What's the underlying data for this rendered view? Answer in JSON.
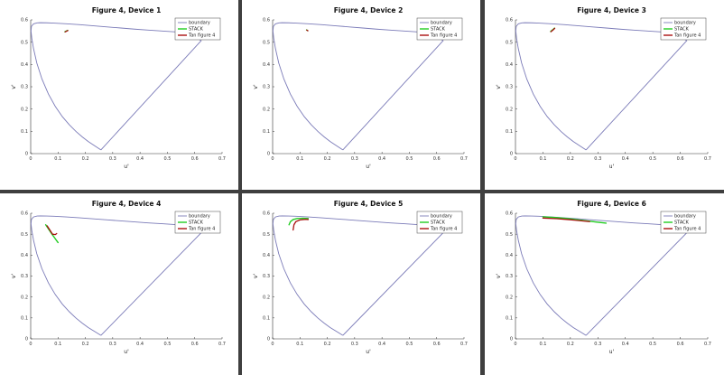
{
  "chart_data": [
    {
      "type": "line",
      "title": "Figure 4, Device 1",
      "xlabel": "u'",
      "ylabel": "v'",
      "xlim": [
        0,
        0.7
      ],
      "ylim": [
        0,
        0.6
      ],
      "xticks": [
        "0",
        "0.1",
        "0.2",
        "0.3",
        "0.4",
        "0.5",
        "0.6",
        "0.7"
      ],
      "yticks": [
        "0",
        "0.1",
        "0.2",
        "0.3",
        "0.4",
        "0.5",
        "0.6"
      ],
      "legend": [
        "boundary",
        "STACK",
        "Tan figure 4"
      ],
      "series": [
        {
          "name": "STACK",
          "u": [
            0.125,
            0.13,
            0.135
          ],
          "v": [
            0.547,
            0.55,
            0.553
          ]
        },
        {
          "name": "Tan figure 4",
          "u": [
            0.126,
            0.131,
            0.136
          ],
          "v": [
            0.546,
            0.549,
            0.552
          ]
        }
      ]
    },
    {
      "type": "line",
      "title": "Figure 4, Device 2",
      "xlabel": "u'",
      "ylabel": "v'",
      "xlim": [
        0,
        0.7
      ],
      "ylim": [
        0,
        0.6
      ],
      "xticks": [
        "0",
        "0.1",
        "0.2",
        "0.3",
        "0.4",
        "0.5",
        "0.6",
        "0.7"
      ],
      "yticks": [
        "0",
        "0.1",
        "0.2",
        "0.3",
        "0.4",
        "0.5",
        "0.6"
      ],
      "legend": [
        "boundary",
        "STACK",
        "Tan figure 4"
      ],
      "series": [
        {
          "name": "STACK",
          "u": [
            0.124,
            0.128
          ],
          "v": [
            0.555,
            0.552
          ]
        },
        {
          "name": "Tan figure 4",
          "u": [
            0.125,
            0.129
          ],
          "v": [
            0.554,
            0.551
          ]
        }
      ]
    },
    {
      "type": "line",
      "title": "Figure 4, Device 3",
      "xlabel": "u'",
      "ylabel": "v'",
      "xlim": [
        0,
        0.7
      ],
      "ylim": [
        0,
        0.6
      ],
      "xticks": [
        "0",
        "0.1",
        "0.2",
        "0.3",
        "0.4",
        "0.5",
        "0.6",
        "0.7"
      ],
      "yticks": [
        "0",
        "0.1",
        "0.2",
        "0.3",
        "0.4",
        "0.5",
        "0.6"
      ],
      "legend": [
        "boundary",
        "STACK",
        "Tan figure 4"
      ],
      "series": [
        {
          "name": "STACK",
          "u": [
            0.128,
            0.135,
            0.142
          ],
          "v": [
            0.548,
            0.555,
            0.563
          ]
        },
        {
          "name": "Tan figure 4",
          "u": [
            0.129,
            0.136,
            0.143
          ],
          "v": [
            0.547,
            0.554,
            0.562
          ]
        }
      ]
    },
    {
      "type": "line",
      "title": "Figure 4, Device 4",
      "xlabel": "u'",
      "ylabel": "v'",
      "xlim": [
        0,
        0.7
      ],
      "ylim": [
        0,
        0.6
      ],
      "xticks": [
        "0",
        "0.1",
        "0.2",
        "0.3",
        "0.4",
        "0.5",
        "0.6",
        "0.7"
      ],
      "yticks": [
        "0",
        "0.1",
        "0.2",
        "0.3",
        "0.4",
        "0.5",
        "0.6"
      ],
      "legend": [
        "boundary",
        "STACK",
        "Tan figure 4"
      ],
      "series": [
        {
          "name": "STACK",
          "u": [
            0.055,
            0.065,
            0.078,
            0.09,
            0.1
          ],
          "v": [
            0.545,
            0.525,
            0.5,
            0.478,
            0.46
          ]
        },
        {
          "name": "Tan figure 4",
          "u": [
            0.06,
            0.07,
            0.08,
            0.09,
            0.095
          ],
          "v": [
            0.54,
            0.52,
            0.5,
            0.498,
            0.503
          ]
        }
      ]
    },
    {
      "type": "line",
      "title": "Figure 4, Device 5",
      "xlabel": "u'",
      "ylabel": "v'",
      "xlim": [
        0,
        0.7
      ],
      "ylim": [
        0,
        0.6
      ],
      "xticks": [
        "0",
        "0.1",
        "0.2",
        "0.3",
        "0.4",
        "0.5",
        "0.6",
        "0.7"
      ],
      "yticks": [
        "0",
        "0.1",
        "0.2",
        "0.3",
        "0.4",
        "0.5",
        "0.6"
      ],
      "legend": [
        "boundary",
        "STACK",
        "Tan figure 4"
      ],
      "series": [
        {
          "name": "STACK",
          "u": [
            0.06,
            0.065,
            0.075,
            0.09,
            0.11,
            0.13
          ],
          "v": [
            0.545,
            0.56,
            0.57,
            0.575,
            0.576,
            0.575
          ]
        },
        {
          "name": "Tan figure 4",
          "u": [
            0.075,
            0.078,
            0.085,
            0.1,
            0.12,
            0.13
          ],
          "v": [
            0.52,
            0.545,
            0.56,
            0.568,
            0.571,
            0.57
          ]
        }
      ]
    },
    {
      "type": "line",
      "title": "Figure 4, Device 6",
      "xlabel": "u'",
      "ylabel": "v'",
      "xlim": [
        0,
        0.7
      ],
      "ylim": [
        0,
        0.6
      ],
      "xticks": [
        "0",
        "0.1",
        "0.2",
        "0.3",
        "0.4",
        "0.5",
        "0.6",
        "0.7"
      ],
      "yticks": [
        "0",
        "0.1",
        "0.2",
        "0.3",
        "0.4",
        "0.5",
        "0.6"
      ],
      "legend": [
        "boundary",
        "STACK",
        "Tan figure 4"
      ],
      "series": [
        {
          "name": "STACK",
          "u": [
            0.1,
            0.15,
            0.2,
            0.25,
            0.3,
            0.33
          ],
          "v": [
            0.583,
            0.579,
            0.573,
            0.565,
            0.557,
            0.553
          ]
        },
        {
          "name": "Tan figure 4",
          "u": [
            0.1,
            0.15,
            0.2,
            0.24,
            0.27
          ],
          "v": [
            0.577,
            0.574,
            0.569,
            0.564,
            0.56
          ]
        }
      ]
    }
  ],
  "boundary": {
    "u": [
      0.2568,
      0.2335,
      0.2105,
      0.1891,
      0.1659,
      0.1412,
      0.1154,
      0.0899,
      0.0648,
      0.0412,
      0.0224,
      0.0103,
      0.0039,
      0.0012,
      0.0027,
      0.0103,
      0.0234,
      0.035,
      0.058,
      0.085,
      0.13,
      0.18,
      0.23,
      0.28,
      0.33,
      0.38,
      0.43,
      0.48,
      0.53,
      0.58,
      0.6234,
      0.2568
    ],
    "v": [
      0.0165,
      0.0356,
      0.0541,
      0.0744,
      0.0991,
      0.1295,
      0.1664,
      0.2118,
      0.2674,
      0.3345,
      0.4064,
      0.4717,
      0.5183,
      0.5502,
      0.5706,
      0.5822,
      0.5866,
      0.5873,
      0.5868,
      0.5855,
      0.5825,
      0.5783,
      0.5735,
      0.5685,
      0.5635,
      0.5585,
      0.554,
      0.55,
      0.5459,
      0.5426,
      0.5065,
      0.0165
    ]
  },
  "colors": {
    "boundary": "#7b7bb8",
    "stack": "#22cc22",
    "tan": "#aa1111",
    "panel_bg": "#ffffff",
    "page_bg": "#3f3f3f"
  }
}
